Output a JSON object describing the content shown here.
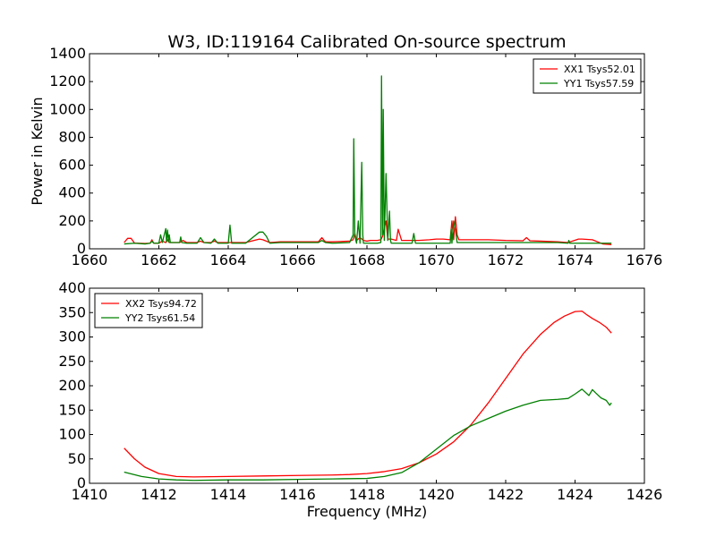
{
  "figure": {
    "title": "W3, ID:119164 Calibrated On-source spectrum",
    "xlabel": "Frequency (MHz)",
    "ylabel_top": "Power in Kelvin"
  },
  "chart_data": [
    {
      "type": "line",
      "title": "W3, ID:119164 Calibrated On-source spectrum",
      "xlabel": "",
      "ylabel": "Power in Kelvin",
      "xlim": [
        1660,
        1676
      ],
      "ylim": [
        0,
        1400
      ],
      "xticks": [
        1660,
        1662,
        1664,
        1666,
        1668,
        1670,
        1672,
        1674,
        1676
      ],
      "yticks": [
        0,
        200,
        400,
        600,
        800,
        1000,
        1200,
        1400
      ],
      "legend_position": "top-right",
      "grid": false,
      "series": [
        {
          "name": "XX1 Tsys52.01",
          "color": "#ff0000",
          "x": [
            1661.0,
            1661.1,
            1661.2,
            1661.3,
            1661.4,
            1661.6,
            1661.75,
            1661.8,
            1661.85,
            1662.0,
            1662.1,
            1662.2,
            1662.25,
            1662.3,
            1662.6,
            1662.7,
            1662.8,
            1663.1,
            1663.2,
            1663.3,
            1663.5,
            1663.6,
            1663.7,
            1664.0,
            1664.5,
            1664.9,
            1665.0,
            1665.2,
            1665.5,
            1666.0,
            1666.6,
            1666.7,
            1666.8,
            1667.0,
            1667.5,
            1667.6,
            1667.65,
            1667.7,
            1667.8,
            1667.9,
            1668.0,
            1668.1,
            1668.3,
            1668.4,
            1668.45,
            1668.5,
            1668.55,
            1668.6,
            1668.7,
            1668.85,
            1668.9,
            1669.0,
            1669.3,
            1669.5,
            1669.8,
            1670.0,
            1670.2,
            1670.4,
            1670.45,
            1670.5,
            1670.55,
            1670.6,
            1670.65,
            1670.8,
            1671.0,
            1671.5,
            1672.0,
            1672.5,
            1672.6,
            1672.7,
            1673.0,
            1673.5,
            1673.8,
            1674.1,
            1674.2,
            1674.5,
            1674.8,
            1675.05
          ],
          "values": [
            45,
            75,
            75,
            40,
            40,
            38,
            40,
            65,
            40,
            40,
            55,
            45,
            65,
            45,
            45,
            60,
            45,
            45,
            55,
            45,
            45,
            55,
            45,
            45,
            45,
            70,
            65,
            45,
            50,
            50,
            50,
            80,
            50,
            50,
            55,
            65,
            110,
            60,
            80,
            60,
            55,
            60,
            60,
            65,
            90,
            150,
            200,
            70,
            70,
            60,
            140,
            60,
            60,
            60,
            65,
            70,
            70,
            65,
            200,
            65,
            230,
            100,
            65,
            65,
            65,
            65,
            60,
            58,
            80,
            58,
            55,
            50,
            45,
            70,
            70,
            65,
            35,
            30
          ]
        },
        {
          "name": "YY1 Tsys57.59",
          "color": "#008000",
          "x": [
            1661.0,
            1661.3,
            1661.6,
            1661.75,
            1661.8,
            1661.85,
            1662.0,
            1662.05,
            1662.1,
            1662.2,
            1662.22,
            1662.25,
            1662.28,
            1662.3,
            1662.33,
            1662.4,
            1662.6,
            1662.63,
            1662.66,
            1662.8,
            1663.1,
            1663.2,
            1663.3,
            1663.5,
            1663.6,
            1663.7,
            1664.0,
            1664.05,
            1664.1,
            1664.5,
            1664.9,
            1665.0,
            1665.1,
            1665.2,
            1665.5,
            1666.0,
            1666.6,
            1666.7,
            1666.8,
            1667.0,
            1667.5,
            1667.6,
            1667.62,
            1667.65,
            1667.68,
            1667.7,
            1667.75,
            1667.8,
            1667.85,
            1667.88,
            1667.9,
            1667.95,
            1668.0,
            1668.3,
            1668.4,
            1668.42,
            1668.45,
            1668.47,
            1668.5,
            1668.55,
            1668.6,
            1668.65,
            1668.68,
            1668.7,
            1668.8,
            1669.0,
            1669.3,
            1669.35,
            1669.4,
            1669.5,
            1670.0,
            1670.4,
            1670.43,
            1670.45,
            1670.5,
            1670.55,
            1670.6,
            1670.8,
            1671.0,
            1671.5,
            1672.0,
            1672.5,
            1673.0,
            1673.5,
            1673.8,
            1673.82,
            1673.85,
            1674.0,
            1674.5,
            1675.05
          ],
          "values": [
            35,
            40,
            35,
            40,
            55,
            40,
            40,
            100,
            45,
            145,
            50,
            135,
            50,
            100,
            45,
            45,
            45,
            85,
            45,
            40,
            40,
            80,
            45,
            40,
            70,
            40,
            40,
            170,
            40,
            40,
            120,
            120,
            90,
            40,
            45,
            45,
            45,
            60,
            45,
            40,
            45,
            100,
            790,
            100,
            60,
            40,
            200,
            40,
            620,
            100,
            40,
            40,
            40,
            40,
            45,
            1240,
            100,
            1000,
            60,
            540,
            60,
            270,
            60,
            40,
            40,
            40,
            40,
            110,
            40,
            40,
            40,
            40,
            140,
            40,
            200,
            140,
            45,
            45,
            45,
            45,
            45,
            45,
            45,
            45,
            40,
            60,
            40,
            40,
            40,
            40
          ]
        }
      ]
    },
    {
      "type": "line",
      "title": "",
      "xlabel": "Frequency (MHz)",
      "ylabel": "",
      "xlim": [
        1410,
        1426
      ],
      "ylim": [
        0,
        400
      ],
      "xticks": [
        1410,
        1412,
        1414,
        1416,
        1418,
        1420,
        1422,
        1424,
        1426
      ],
      "yticks": [
        0,
        50,
        100,
        150,
        200,
        250,
        300,
        350,
        400
      ],
      "legend_position": "top-left",
      "grid": false,
      "series": [
        {
          "name": "XX2 Tsys94.72",
          "color": "#ff0000",
          "x": [
            1411.0,
            1411.3,
            1411.6,
            1412.0,
            1412.5,
            1413.0,
            1414.0,
            1415.0,
            1416.0,
            1417.0,
            1417.5,
            1418.0,
            1418.5,
            1419.0,
            1419.5,
            1420.0,
            1420.5,
            1421.0,
            1421.5,
            1422.0,
            1422.5,
            1423.0,
            1423.4,
            1423.7,
            1424.0,
            1424.2,
            1424.35,
            1424.5,
            1424.7,
            1424.9,
            1425.05
          ],
          "values": [
            72,
            50,
            33,
            20,
            14,
            13,
            14,
            15,
            16,
            17,
            18,
            20,
            24,
            30,
            42,
            60,
            85,
            120,
            165,
            215,
            265,
            305,
            330,
            343,
            352,
            353,
            345,
            338,
            330,
            320,
            308
          ]
        },
        {
          "name": "YY2 Tsys61.54",
          "color": "#008000",
          "x": [
            1411.0,
            1411.5,
            1412.0,
            1412.5,
            1413.0,
            1414.0,
            1415.0,
            1416.0,
            1417.0,
            1418.0,
            1418.5,
            1419.0,
            1419.5,
            1420.0,
            1420.5,
            1421.0,
            1421.5,
            1422.0,
            1422.5,
            1423.0,
            1423.5,
            1423.8,
            1424.0,
            1424.2,
            1424.4,
            1424.5,
            1424.6,
            1424.75,
            1424.9,
            1425.0,
            1425.05
          ],
          "values": [
            23,
            14,
            9,
            7,
            6,
            7,
            7,
            8,
            9,
            10,
            14,
            22,
            42,
            70,
            98,
            118,
            133,
            148,
            160,
            170,
            172,
            174,
            183,
            193,
            180,
            192,
            185,
            175,
            170,
            160,
            165
          ]
        }
      ]
    }
  ]
}
